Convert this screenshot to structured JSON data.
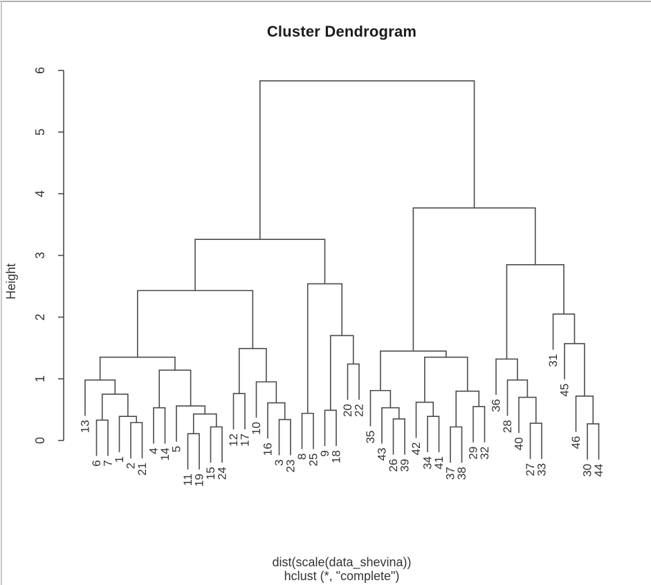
{
  "window": {
    "background": "#ffffff",
    "border_color": "#b5b5b5"
  },
  "chart_data": {
    "type": "dendrogram",
    "title": "Cluster Dendrogram",
    "y_axis": {
      "label": "Height",
      "ticks": [
        0,
        1,
        2,
        3,
        4,
        5,
        6
      ],
      "range": [
        0,
        6
      ]
    },
    "x_caption_lines": [
      "dist(scale(data_shevina))",
      "hclust (*, \"complete\")"
    ],
    "hang": 0.58,
    "grid": false,
    "leaf_order": [
      "13",
      "6",
      "7",
      "1",
      "2",
      "21",
      "4",
      "14",
      "5",
      "11",
      "19",
      "15",
      "24",
      "12",
      "17",
      "10",
      "16",
      "3",
      "23",
      "8",
      "25",
      "9",
      "18",
      "20",
      "22",
      "35",
      "43",
      "26",
      "39",
      "42",
      "34",
      "41",
      "37",
      "38",
      "29",
      "32",
      "36",
      "28",
      "40",
      "27",
      "33",
      "31",
      "45",
      "46",
      "30",
      "44"
    ],
    "merge_tree": {
      "h": 5.83,
      "c": [
        {
          "h": 3.26,
          "c": [
            {
              "h": 2.43,
              "c": [
                {
                  "h": 1.35,
                  "c": [
                    {
                      "h": 0.98,
                      "c": [
                        "13",
                        {
                          "h": 0.75,
                          "c": [
                            {
                              "h": 0.33,
                              "c": [
                                "6",
                                "7"
                              ]
                            },
                            {
                              "h": 0.39,
                              "c": [
                                "1",
                                {
                                  "h": 0.29,
                                  "c": [
                                    "2",
                                    "21"
                                  ]
                                }
                              ]
                            }
                          ]
                        }
                      ]
                    },
                    {
                      "h": 1.14,
                      "c": [
                        {
                          "h": 0.53,
                          "c": [
                            "4",
                            "14"
                          ]
                        },
                        {
                          "h": 0.56,
                          "c": [
                            "5",
                            {
                              "h": 0.43,
                              "c": [
                                {
                                  "h": 0.11,
                                  "c": [
                                    "11",
                                    "19"
                                  ]
                                },
                                {
                                  "h": 0.22,
                                  "c": [
                                    "15",
                                    "24"
                                  ]
                                }
                              ]
                            }
                          ]
                        }
                      ]
                    }
                  ]
                },
                {
                  "h": 1.49,
                  "c": [
                    {
                      "h": 0.76,
                      "c": [
                        "12",
                        "17"
                      ]
                    },
                    {
                      "h": 0.95,
                      "c": [
                        "10",
                        {
                          "h": 0.61,
                          "c": [
                            "16",
                            {
                              "h": 0.34,
                              "c": [
                                "3",
                                "23"
                              ]
                            }
                          ]
                        }
                      ]
                    }
                  ]
                }
              ]
            },
            {
              "h": 2.54,
              "c": [
                {
                  "h": 0.44,
                  "c": [
                    "8",
                    "25"
                  ]
                },
                {
                  "h": 1.7,
                  "c": [
                    {
                      "h": 0.49,
                      "c": [
                        "9",
                        "18"
                      ]
                    },
                    {
                      "h": 1.24,
                      "c": [
                        "20",
                        "22"
                      ]
                    }
                  ]
                }
              ]
            }
          ]
        },
        {
          "h": 3.77,
          "c": [
            {
              "h": 1.45,
              "c": [
                {
                  "h": 0.81,
                  "c": [
                    "35",
                    {
                      "h": 0.53,
                      "c": [
                        "43",
                        {
                          "h": 0.35,
                          "c": [
                            "26",
                            "39"
                          ]
                        }
                      ]
                    }
                  ]
                },
                {
                  "h": 1.35,
                  "c": [
                    {
                      "h": 0.62,
                      "c": [
                        "42",
                        {
                          "h": 0.39,
                          "c": [
                            "34",
                            "41"
                          ]
                        }
                      ]
                    },
                    {
                      "h": 0.8,
                      "c": [
                        {
                          "h": 0.22,
                          "c": [
                            "37",
                            "38"
                          ]
                        },
                        {
                          "h": 0.55,
                          "c": [
                            "29",
                            "32"
                          ]
                        }
                      ]
                    }
                  ]
                }
              ]
            },
            {
              "h": 2.85,
              "c": [
                {
                  "h": 1.32,
                  "c": [
                    "36",
                    {
                      "h": 0.98,
                      "c": [
                        "28",
                        {
                          "h": 0.7,
                          "c": [
                            "40",
                            {
                              "h": 0.28,
                              "c": [
                                "27",
                                "33"
                              ]
                            }
                          ]
                        }
                      ]
                    }
                  ]
                },
                {
                  "h": 2.05,
                  "c": [
                    "31",
                    {
                      "h": 1.57,
                      "c": [
                        "45",
                        {
                          "h": 0.72,
                          "c": [
                            "46",
                            {
                              "h": 0.27,
                              "c": [
                                "30",
                                "44"
                              ]
                            }
                          ]
                        }
                      ]
                    }
                  ]
                }
              ]
            }
          ]
        }
      ]
    },
    "colors": {
      "line": "#4a4a4a",
      "text": "#333333"
    }
  }
}
